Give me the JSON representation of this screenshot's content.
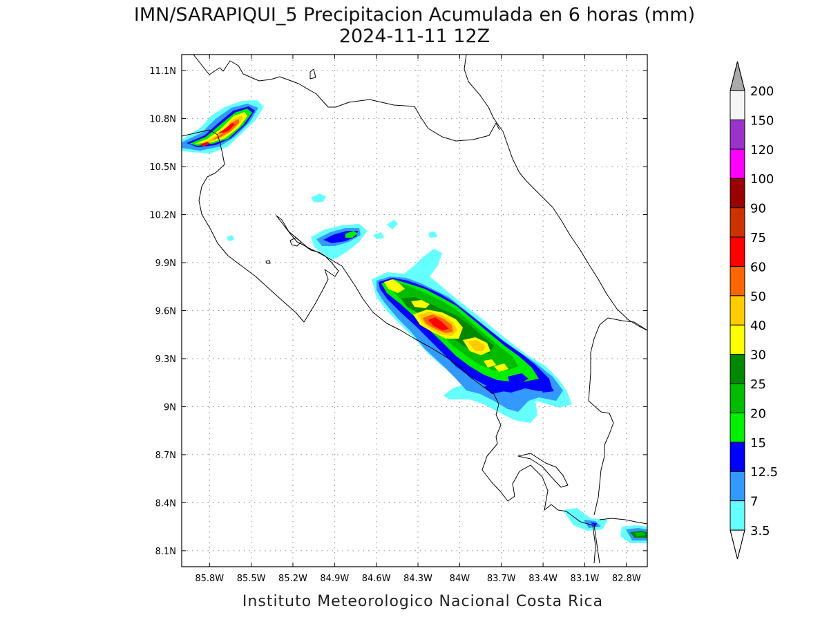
{
  "title": {
    "line1": "IMN/SARAPIQUI_5 Precipitacion Acumulada en 6 horas (mm)",
    "line2": "2024-11-11 12Z"
  },
  "credit": "Instituto Meteorologico Nacional Costa Rica",
  "map": {
    "lon_range": [
      -86.0,
      -82.65
    ],
    "lat_range": [
      8.0,
      11.2
    ],
    "lon_ticks": [
      {
        "value": -85.8,
        "label": "85.8W"
      },
      {
        "value": -85.5,
        "label": "85.5W"
      },
      {
        "value": -85.2,
        "label": "85.2W"
      },
      {
        "value": -84.9,
        "label": "84.9W"
      },
      {
        "value": -84.6,
        "label": "84.6W"
      },
      {
        "value": -84.3,
        "label": "84.3W"
      },
      {
        "value": -84.0,
        "label": "84W"
      },
      {
        "value": -83.7,
        "label": "83.7W"
      },
      {
        "value": -83.4,
        "label": "83.4W"
      },
      {
        "value": -83.1,
        "label": "83.1W"
      },
      {
        "value": -82.8,
        "label": "82.8W"
      }
    ],
    "lat_ticks": [
      {
        "value": 8.1,
        "label": "8.1N"
      },
      {
        "value": 8.4,
        "label": "8.4N"
      },
      {
        "value": 8.7,
        "label": "8.7N"
      },
      {
        "value": 9.0,
        "label": "9N"
      },
      {
        "value": 9.3,
        "label": "9.3N"
      },
      {
        "value": 9.6,
        "label": "9.6N"
      },
      {
        "value": 9.9,
        "label": "9.9N"
      },
      {
        "value": 10.2,
        "label": "10.2N"
      },
      {
        "value": 10.5,
        "label": "10.5N"
      },
      {
        "value": 10.8,
        "label": "10.8N"
      },
      {
        "value": 11.1,
        "label": "11.1N"
      }
    ],
    "grid": "dotted"
  },
  "colorbar": {
    "levels": [
      {
        "label": "3.5",
        "color": "#66ffff"
      },
      {
        "label": "7",
        "color": "#3399ff"
      },
      {
        "label": "12.5",
        "color": "#0000ff"
      },
      {
        "label": "15",
        "color": "#00ee00"
      },
      {
        "label": "20",
        "color": "#00bb00"
      },
      {
        "label": "25",
        "color": "#008800"
      },
      {
        "label": "30",
        "color": "#ffff00"
      },
      {
        "label": "40",
        "color": "#ffcc00"
      },
      {
        "label": "50",
        "color": "#ff6600"
      },
      {
        "label": "60",
        "color": "#ff0000"
      },
      {
        "label": "75",
        "color": "#cc3300"
      },
      {
        "label": "90",
        "color": "#990000"
      },
      {
        "label": "100",
        "color": "#ff00ff"
      },
      {
        "label": "120",
        "color": "#9933cc"
      },
      {
        "label": "150",
        "color": "#f5f5f5"
      },
      {
        "label": "200",
        "color": "#aaaaaa"
      }
    ]
  }
}
